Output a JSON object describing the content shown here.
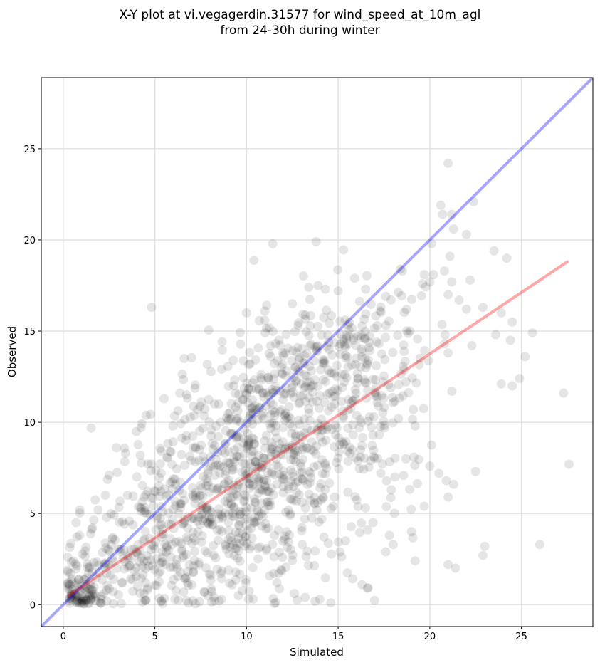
{
  "chart_data": {
    "type": "scatter",
    "title_line1": "X-Y plot at vi.vegagerdin.31577 for wind_speed_at_10m_agl",
    "title_line2": "from 24-30h during winter",
    "xlabel": "Simulated",
    "ylabel": "Observed",
    "xlim": [
      -1.2,
      28.9
    ],
    "ylim": [
      -1.2,
      28.9
    ],
    "x_ticks": [
      0,
      5,
      10,
      15,
      20,
      25
    ],
    "y_ticks": [
      0,
      5,
      10,
      15,
      20,
      25
    ],
    "grid": true,
    "point_color": "#000000",
    "point_alpha": 0.1,
    "identity_line": {
      "color": "#0000ff",
      "alpha": 0.35,
      "from": [
        -1.2,
        -1.2
      ],
      "to": [
        28.9,
        28.9
      ]
    },
    "fit_line": {
      "color": "#ff0000",
      "alpha": 0.35,
      "from": [
        0.3,
        0.5
      ],
      "to": [
        27.5,
        18.8
      ]
    },
    "points_explicit": [
      [
        21.0,
        24.2
      ],
      [
        20.6,
        21.9
      ],
      [
        20.7,
        21.4
      ],
      [
        21.2,
        21.4
      ],
      [
        22.4,
        22.1
      ],
      [
        20.1,
        19.8
      ],
      [
        21.1,
        19.1
      ],
      [
        21.3,
        20.6
      ],
      [
        22.0,
        20.3
      ],
      [
        23.5,
        19.4
      ],
      [
        24.2,
        19.0
      ],
      [
        13.8,
        19.9
      ],
      [
        18.4,
        18.4
      ],
      [
        19.7,
        18.1
      ],
      [
        20.2,
        18.1
      ],
      [
        20.8,
        18.3
      ],
      [
        21.2,
        17.7
      ],
      [
        22.2,
        17.8
      ],
      [
        19.6,
        17.6
      ],
      [
        20.0,
        17.7
      ],
      [
        21.0,
        17.0
      ],
      [
        21.6,
        16.7
      ],
      [
        22.9,
        16.3
      ],
      [
        22.0,
        16.2
      ],
      [
        23.9,
        16.0
      ],
      [
        24.5,
        15.5
      ],
      [
        23.6,
        14.8
      ],
      [
        25.6,
        14.9
      ],
      [
        24.4,
        14.5
      ],
      [
        22.3,
        14.2
      ],
      [
        20.8,
        14.3
      ],
      [
        21.0,
        13.8
      ],
      [
        25.2,
        13.6
      ],
      [
        24.9,
        12.4
      ],
      [
        24.5,
        12.0
      ],
      [
        23.9,
        12.1
      ],
      [
        21.2,
        11.7
      ],
      [
        27.3,
        11.6
      ],
      [
        20.0,
        7.6
      ],
      [
        20.5,
        7.2
      ],
      [
        21.3,
        6.6
      ],
      [
        22.5,
        7.3
      ],
      [
        21.0,
        5.9
      ],
      [
        20.9,
        6.8
      ],
      [
        19.7,
        5.4
      ],
      [
        21.0,
        2.2
      ],
      [
        21.4,
        2.0
      ],
      [
        23.0,
        3.2
      ],
      [
        22.9,
        2.7
      ],
      [
        26.0,
        3.3
      ],
      [
        27.6,
        7.7
      ],
      [
        19.0,
        4.0
      ],
      [
        19.2,
        2.4
      ],
      [
        18.0,
        3.3
      ],
      [
        17.6,
        2.9
      ],
      [
        16.3,
        1.1
      ],
      [
        16.6,
        0.9
      ],
      [
        14.6,
        0.1
      ],
      [
        14.0,
        0.3
      ],
      [
        13.2,
        0.4
      ],
      [
        6.6,
        13.5
      ],
      [
        5.5,
        11.3
      ],
      [
        3.4,
        8.3
      ],
      [
        4.2,
        8.2
      ],
      [
        2.5,
        7.1
      ],
      [
        0.9,
        5.2
      ],
      [
        0.7,
        4.5
      ],
      [
        1.9,
        5.2
      ],
      [
        2.3,
        6.0
      ],
      [
        3.5,
        6.0
      ],
      [
        15.9,
        17.9
      ],
      [
        16.5,
        17.3
      ],
      [
        17.6,
        16.9
      ],
      [
        18.5,
        18.3
      ],
      [
        13.4,
        17.4
      ],
      [
        14.3,
        17.3
      ],
      [
        15.0,
        17.2
      ],
      [
        12.5,
        16.5
      ],
      [
        11.0,
        16.1
      ],
      [
        10.0,
        16.0
      ],
      [
        19.2,
        9.8
      ],
      [
        19.1,
        10.7
      ],
      [
        18.7,
        8.0
      ],
      [
        18.1,
        7.0
      ],
      [
        17.9,
        6.3
      ],
      [
        17.8,
        3.8
      ],
      [
        16.9,
        4.5
      ],
      [
        16.6,
        4.1
      ],
      [
        15.4,
        3.5
      ],
      [
        15.1,
        2.9
      ]
    ],
    "point_clusters": [
      {
        "cx": 0.9,
        "cy": 0.4,
        "sx": 0.5,
        "sy": 0.35,
        "n": 60,
        "min_x": 0.2,
        "min_y": 0.05
      },
      {
        "cx": 1.5,
        "cy": 1.5,
        "sx": 1.0,
        "sy": 1.2,
        "n": 60,
        "min_x": 0.2,
        "min_y": 0.05
      },
      {
        "cx": 4.0,
        "cy": 2.0,
        "sx": 1.6,
        "sy": 1.4,
        "n": 100,
        "min_x": 0.2,
        "min_y": 0.05
      },
      {
        "cx": 5.0,
        "cy": 5.5,
        "sx": 1.8,
        "sy": 2.2,
        "n": 90,
        "min_x": 0.2,
        "min_y": 0.05
      },
      {
        "cx": 7.5,
        "cy": 4.0,
        "sx": 2.2,
        "sy": 2.5,
        "n": 160,
        "min_x": 0.2,
        "min_y": 0.05
      },
      {
        "cx": 8.5,
        "cy": 8.0,
        "sx": 2.0,
        "sy": 2.4,
        "n": 170,
        "min_x": 0.2,
        "min_y": 0.05
      },
      {
        "cx": 10.5,
        "cy": 5.5,
        "sx": 2.0,
        "sy": 2.8,
        "n": 170,
        "min_x": 0.2,
        "min_y": 0.05
      },
      {
        "cx": 11.0,
        "cy": 10.5,
        "sx": 2.0,
        "sy": 2.6,
        "n": 170,
        "min_x": 0.2,
        "min_y": 0.05
      },
      {
        "cx": 13.0,
        "cy": 8.0,
        "sx": 2.0,
        "sy": 3.0,
        "n": 150,
        "min_x": 0.2,
        "min_y": 0.05
      },
      {
        "cx": 13.5,
        "cy": 13.0,
        "sx": 2.0,
        "sy": 2.0,
        "n": 120,
        "min_x": 0.2,
        "min_y": 0.05
      },
      {
        "cx": 16.0,
        "cy": 13.5,
        "sx": 1.6,
        "sy": 2.0,
        "n": 90,
        "min_x": 0.2,
        "min_y": 0.05
      },
      {
        "cx": 16.5,
        "cy": 9.0,
        "sx": 1.4,
        "sy": 2.8,
        "n": 70,
        "min_x": 0.2,
        "min_y": 0.05
      },
      {
        "cx": 18.5,
        "cy": 14.0,
        "sx": 1.2,
        "sy": 1.5,
        "n": 30,
        "min_x": 0.2,
        "min_y": 0.05
      }
    ]
  }
}
